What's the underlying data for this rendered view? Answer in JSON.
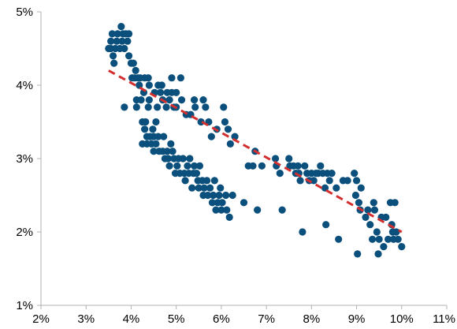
{
  "chart_data": {
    "type": "scatter",
    "title": "",
    "xlabel": "",
    "ylabel": "",
    "xlim": [
      0.02,
      0.11
    ],
    "ylim": [
      0.01,
      0.05
    ],
    "x_ticks": [
      0.02,
      0.03,
      0.04,
      0.05,
      0.06,
      0.07,
      0.08,
      0.09,
      0.1,
      0.11
    ],
    "x_tick_labels": [
      "2%",
      "3%",
      "4%",
      "5%",
      "6%",
      "7%",
      "8%",
      "9%",
      "10%",
      "11%"
    ],
    "y_ticks": [
      0.01,
      0.02,
      0.03,
      0.04,
      0.05
    ],
    "y_tick_labels": [
      "1%",
      "2%",
      "3%",
      "4%",
      "5%"
    ],
    "grid": false,
    "legend": "none",
    "colors": {
      "points": "#0b4f7c",
      "trendline": "#d32f2f",
      "axis": "#b0b0b0"
    },
    "trendline": {
      "style": "dashed",
      "x": [
        0.035,
        0.1
      ],
      "y": [
        0.042,
        0.02
      ]
    },
    "series": [
      {
        "points": [
          [
            0.035,
            0.045
          ],
          [
            0.0355,
            0.046
          ],
          [
            0.0355,
            0.045
          ],
          [
            0.0358,
            0.047
          ],
          [
            0.036,
            0.044
          ],
          [
            0.0362,
            0.043
          ],
          [
            0.0365,
            0.045
          ],
          [
            0.0368,
            0.046
          ],
          [
            0.037,
            0.047
          ],
          [
            0.0375,
            0.045
          ],
          [
            0.0378,
            0.048
          ],
          [
            0.038,
            0.046
          ],
          [
            0.0382,
            0.047
          ],
          [
            0.0385,
            0.045
          ],
          [
            0.0388,
            0.047
          ],
          [
            0.0392,
            0.046
          ],
          [
            0.0395,
            0.047
          ],
          [
            0.0385,
            0.037
          ],
          [
            0.0395,
            0.044
          ],
          [
            0.04,
            0.043
          ],
          [
            0.0402,
            0.041
          ],
          [
            0.0405,
            0.043
          ],
          [
            0.0408,
            0.041
          ],
          [
            0.041,
            0.042
          ],
          [
            0.0412,
            0.038
          ],
          [
            0.0412,
            0.037
          ],
          [
            0.0415,
            0.041
          ],
          [
            0.0418,
            0.04
          ],
          [
            0.042,
            0.041
          ],
          [
            0.0422,
            0.038
          ],
          [
            0.0425,
            0.035
          ],
          [
            0.0425,
            0.032
          ],
          [
            0.0428,
            0.039
          ],
          [
            0.043,
            0.041
          ],
          [
            0.043,
            0.034
          ],
          [
            0.0432,
            0.035
          ],
          [
            0.0435,
            0.033
          ],
          [
            0.0435,
            0.032
          ],
          [
            0.0438,
            0.037
          ],
          [
            0.0438,
            0.041
          ],
          [
            0.044,
            0.04
          ],
          [
            0.044,
            0.038
          ],
          [
            0.0442,
            0.033
          ],
          [
            0.0445,
            0.032
          ],
          [
            0.0448,
            0.034
          ],
          [
            0.045,
            0.031
          ],
          [
            0.045,
            0.033
          ],
          [
            0.0452,
            0.039
          ],
          [
            0.0455,
            0.035
          ],
          [
            0.0455,
            0.032
          ],
          [
            0.0458,
            0.037
          ],
          [
            0.046,
            0.04
          ],
          [
            0.046,
            0.033
          ],
          [
            0.0462,
            0.031
          ],
          [
            0.0465,
            0.039
          ],
          [
            0.0468,
            0.04
          ],
          [
            0.047,
            0.038
          ],
          [
            0.047,
            0.031
          ],
          [
            0.0472,
            0.033
          ],
          [
            0.0475,
            0.03
          ],
          [
            0.0478,
            0.037
          ],
          [
            0.048,
            0.039
          ],
          [
            0.048,
            0.031
          ],
          [
            0.0482,
            0.03
          ],
          [
            0.0485,
            0.029
          ],
          [
            0.0485,
            0.038
          ],
          [
            0.0488,
            0.032
          ],
          [
            0.049,
            0.041
          ],
          [
            0.049,
            0.039
          ],
          [
            0.0492,
            0.031
          ],
          [
            0.0495,
            0.037
          ],
          [
            0.0495,
            0.03
          ],
          [
            0.0498,
            0.028
          ],
          [
            0.05,
            0.039
          ],
          [
            0.05,
            0.037
          ],
          [
            0.0502,
            0.029
          ],
          [
            0.0505,
            0.03
          ],
          [
            0.0508,
            0.028
          ],
          [
            0.051,
            0.041
          ],
          [
            0.0512,
            0.038
          ],
          [
            0.0515,
            0.03
          ],
          [
            0.0518,
            0.028
          ],
          [
            0.052,
            0.027
          ],
          [
            0.0522,
            0.036
          ],
          [
            0.0525,
            0.029
          ],
          [
            0.0528,
            0.028
          ],
          [
            0.053,
            0.03
          ],
          [
            0.0532,
            0.036
          ],
          [
            0.0535,
            0.026
          ],
          [
            0.0538,
            0.028
          ],
          [
            0.054,
            0.029
          ],
          [
            0.054,
            0.038
          ],
          [
            0.0542,
            0.037
          ],
          [
            0.0545,
            0.028
          ],
          [
            0.0548,
            0.027
          ],
          [
            0.055,
            0.026
          ],
          [
            0.0552,
            0.029
          ],
          [
            0.0555,
            0.035
          ],
          [
            0.0558,
            0.027
          ],
          [
            0.056,
            0.038
          ],
          [
            0.056,
            0.025
          ],
          [
            0.0562,
            0.026
          ],
          [
            0.0565,
            0.037
          ],
          [
            0.0568,
            0.027
          ],
          [
            0.057,
            0.025
          ],
          [
            0.0572,
            0.035
          ],
          [
            0.0575,
            0.026
          ],
          [
            0.0578,
            0.033
          ],
          [
            0.058,
            0.024
          ],
          [
            0.0582,
            0.025
          ],
          [
            0.0585,
            0.027
          ],
          [
            0.0588,
            0.023
          ],
          [
            0.059,
            0.034
          ],
          [
            0.0592,
            0.024
          ],
          [
            0.0595,
            0.025
          ],
          [
            0.0598,
            0.026
          ],
          [
            0.06,
            0.023
          ],
          [
            0.0602,
            0.024
          ],
          [
            0.0605,
            0.037
          ],
          [
            0.0608,
            0.035
          ],
          [
            0.061,
            0.025
          ],
          [
            0.0612,
            0.023
          ],
          [
            0.0615,
            0.034
          ],
          [
            0.0618,
            0.022
          ],
          [
            0.062,
            0.032
          ],
          [
            0.0625,
            0.025
          ],
          [
            0.063,
            0.033
          ],
          [
            0.065,
            0.024
          ],
          [
            0.066,
            0.029
          ],
          [
            0.067,
            0.029
          ],
          [
            0.0675,
            0.031
          ],
          [
            0.068,
            0.023
          ],
          [
            0.069,
            0.029
          ],
          [
            0.072,
            0.03
          ],
          [
            0.0722,
            0.029
          ],
          [
            0.073,
            0.028
          ],
          [
            0.0735,
            0.023
          ],
          [
            0.075,
            0.03
          ],
          [
            0.0752,
            0.029
          ],
          [
            0.076,
            0.029
          ],
          [
            0.0765,
            0.028
          ],
          [
            0.077,
            0.029
          ],
          [
            0.0772,
            0.028
          ],
          [
            0.0775,
            0.027
          ],
          [
            0.078,
            0.02
          ],
          [
            0.0785,
            0.029
          ],
          [
            0.079,
            0.028
          ],
          [
            0.0795,
            0.027
          ],
          [
            0.08,
            0.028
          ],
          [
            0.0805,
            0.027
          ],
          [
            0.081,
            0.028
          ],
          [
            0.0815,
            0.028
          ],
          [
            0.082,
            0.029
          ],
          [
            0.0825,
            0.028
          ],
          [
            0.083,
            0.026
          ],
          [
            0.0832,
            0.021
          ],
          [
            0.0835,
            0.028
          ],
          [
            0.084,
            0.027
          ],
          [
            0.0845,
            0.028
          ],
          [
            0.0855,
            0.026
          ],
          [
            0.086,
            0.019
          ],
          [
            0.087,
            0.027
          ],
          [
            0.088,
            0.027
          ],
          [
            0.0895,
            0.028
          ],
          [
            0.0898,
            0.025
          ],
          [
            0.09,
            0.027
          ],
          [
            0.0902,
            0.017
          ],
          [
            0.0905,
            0.024
          ],
          [
            0.0908,
            0.023
          ],
          [
            0.091,
            0.026
          ],
          [
            0.092,
            0.022
          ],
          [
            0.0925,
            0.023
          ],
          [
            0.093,
            0.021
          ],
          [
            0.0935,
            0.019
          ],
          [
            0.0938,
            0.024
          ],
          [
            0.094,
            0.023
          ],
          [
            0.0945,
            0.02
          ],
          [
            0.0948,
            0.017
          ],
          [
            0.095,
            0.019
          ],
          [
            0.0955,
            0.022
          ],
          [
            0.096,
            0.018
          ],
          [
            0.0965,
            0.022
          ],
          [
            0.097,
            0.019
          ],
          [
            0.0975,
            0.024
          ],
          [
            0.0978,
            0.021
          ],
          [
            0.098,
            0.02
          ],
          [
            0.0982,
            0.019
          ],
          [
            0.0985,
            0.024
          ],
          [
            0.0988,
            0.02
          ],
          [
            0.0992,
            0.019
          ],
          [
            0.1,
            0.018
          ]
        ]
      }
    ]
  }
}
